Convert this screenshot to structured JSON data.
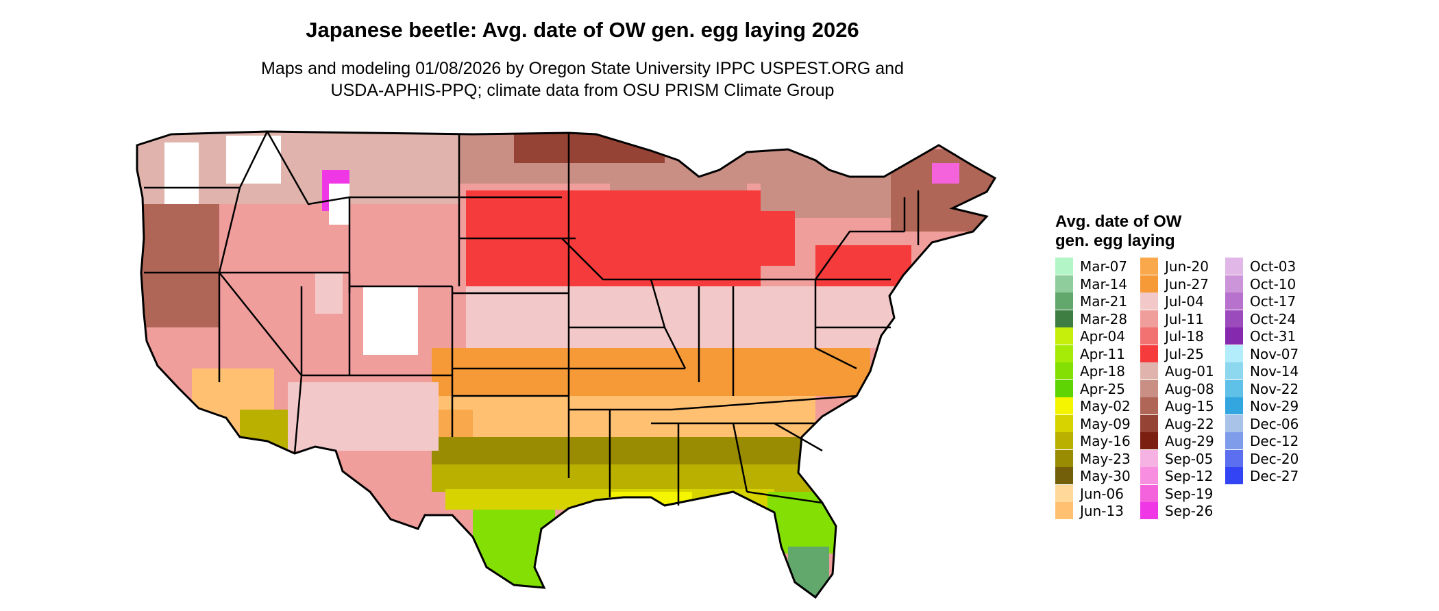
{
  "header": {
    "title": "Japanese beetle: Avg. date of OW gen. egg laying 2026",
    "subtitle_line1": "Maps and modeling 01/08/2026 by Oregon State University IPPC USPEST.ORG and",
    "subtitle_line2": "USDA-APHIS-PPQ; climate data from OSU PRISM Climate Group"
  },
  "legend": {
    "title_line1": "Avg. date of OW",
    "title_line2": "gen. egg laying",
    "columns": [
      [
        {
          "label": "Mar-07",
          "color": "#b3f5c6"
        },
        {
          "label": "Mar-14",
          "color": "#8fce9c"
        },
        {
          "label": "Mar-21",
          "color": "#62a86c"
        },
        {
          "label": "Mar-28",
          "color": "#3f7e43"
        },
        {
          "label": "Apr-04",
          "color": "#c6f00c"
        },
        {
          "label": "Apr-11",
          "color": "#a6ea08"
        },
        {
          "label": "Apr-18",
          "color": "#84e004"
        },
        {
          "label": "Apr-25",
          "color": "#5fd404"
        },
        {
          "label": "May-02",
          "color": "#f5f500"
        },
        {
          "label": "May-09",
          "color": "#d6d300"
        },
        {
          "label": "May-16",
          "color": "#b9b000"
        },
        {
          "label": "May-23",
          "color": "#998c02"
        },
        {
          "label": "May-30",
          "color": "#735e0a"
        },
        {
          "label": "Jun-06",
          "color": "#ffd89a"
        },
        {
          "label": "Jun-13",
          "color": "#ffc171"
        }
      ],
      [
        {
          "label": "Jun-20",
          "color": "#f9a84b"
        },
        {
          "label": "Jun-27",
          "color": "#f59a37"
        },
        {
          "label": "Jul-04",
          "color": "#f2c9c8"
        },
        {
          "label": "Jul-11",
          "color": "#f09e9c"
        },
        {
          "label": "Jul-18",
          "color": "#f27272"
        },
        {
          "label": "Jul-25",
          "color": "#f53b3b"
        },
        {
          "label": "Aug-01",
          "color": "#e0b4ac"
        },
        {
          "label": "Aug-08",
          "color": "#c98f84"
        },
        {
          "label": "Aug-15",
          "color": "#b06657"
        },
        {
          "label": "Aug-22",
          "color": "#954334"
        },
        {
          "label": "Aug-29",
          "color": "#7b2010"
        },
        {
          "label": "Sep-05",
          "color": "#f7b2e4"
        },
        {
          "label": "Sep-12",
          "color": "#f78ee0"
        },
        {
          "label": "Sep-19",
          "color": "#f463dc"
        },
        {
          "label": "Sep-26",
          "color": "#f037e6"
        }
      ],
      [
        {
          "label": "Oct-03",
          "color": "#e0b7e6"
        },
        {
          "label": "Oct-10",
          "color": "#cd95d9"
        },
        {
          "label": "Oct-17",
          "color": "#b672cc"
        },
        {
          "label": "Oct-24",
          "color": "#9c4bbd"
        },
        {
          "label": "Oct-31",
          "color": "#8529ae"
        },
        {
          "label": "Nov-07",
          "color": "#b3ecfa"
        },
        {
          "label": "Nov-14",
          "color": "#8dd7ef"
        },
        {
          "label": "Nov-22",
          "color": "#5fc0e8"
        },
        {
          "label": "Nov-29",
          "color": "#33a6e0"
        },
        {
          "label": "Dec-06",
          "color": "#a9c3e8"
        },
        {
          "label": "Dec-12",
          "color": "#7f9ceb"
        },
        {
          "label": "Dec-20",
          "color": "#5c6ff0"
        },
        {
          "label": "Dec-27",
          "color": "#3344f5"
        }
      ]
    ]
  }
}
